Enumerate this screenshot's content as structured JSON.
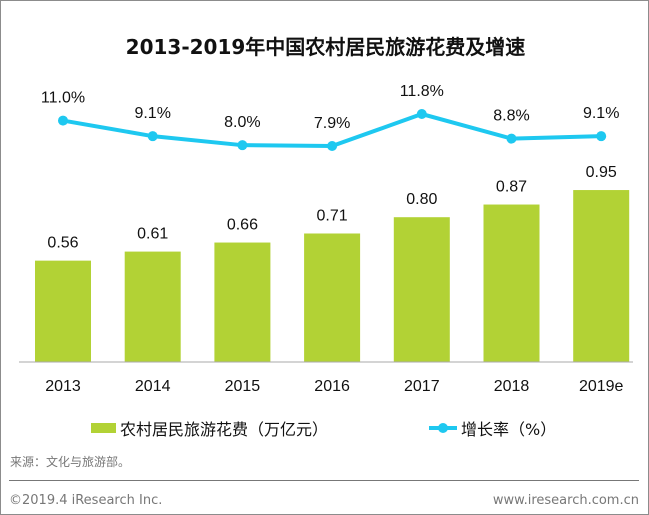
{
  "chart_data": {
    "type": "bar+line",
    "title": "2013-2019年中国农村居民旅游花费及增速",
    "categories": [
      "2013",
      "2014",
      "2015",
      "2016",
      "2017",
      "2018",
      "2019e"
    ],
    "series": [
      {
        "name": "农村居民旅游花费（万亿元）",
        "type": "bar",
        "color": "#b2d235",
        "values": [
          0.56,
          0.61,
          0.66,
          0.71,
          0.8,
          0.87,
          0.95
        ],
        "labels": [
          "0.56",
          "0.61",
          "0.66",
          "0.71",
          "0.80",
          "0.87",
          "0.95"
        ]
      },
      {
        "name": "增长率（%）",
        "type": "line",
        "color": "#1ec8f0",
        "values": [
          11.0,
          9.1,
          8.0,
          7.9,
          11.8,
          8.8,
          9.1
        ],
        "labels": [
          "11.0%",
          "9.1%",
          "8.0%",
          "7.9%",
          "11.8%",
          "8.8%",
          "9.1%"
        ]
      }
    ],
    "legend": "bottom",
    "grid": false
  },
  "footer": {
    "source": "来源：文化与旅游部。",
    "copyright": "©2019.4 iResearch Inc.",
    "website": "www.iresearch.com.cn"
  }
}
